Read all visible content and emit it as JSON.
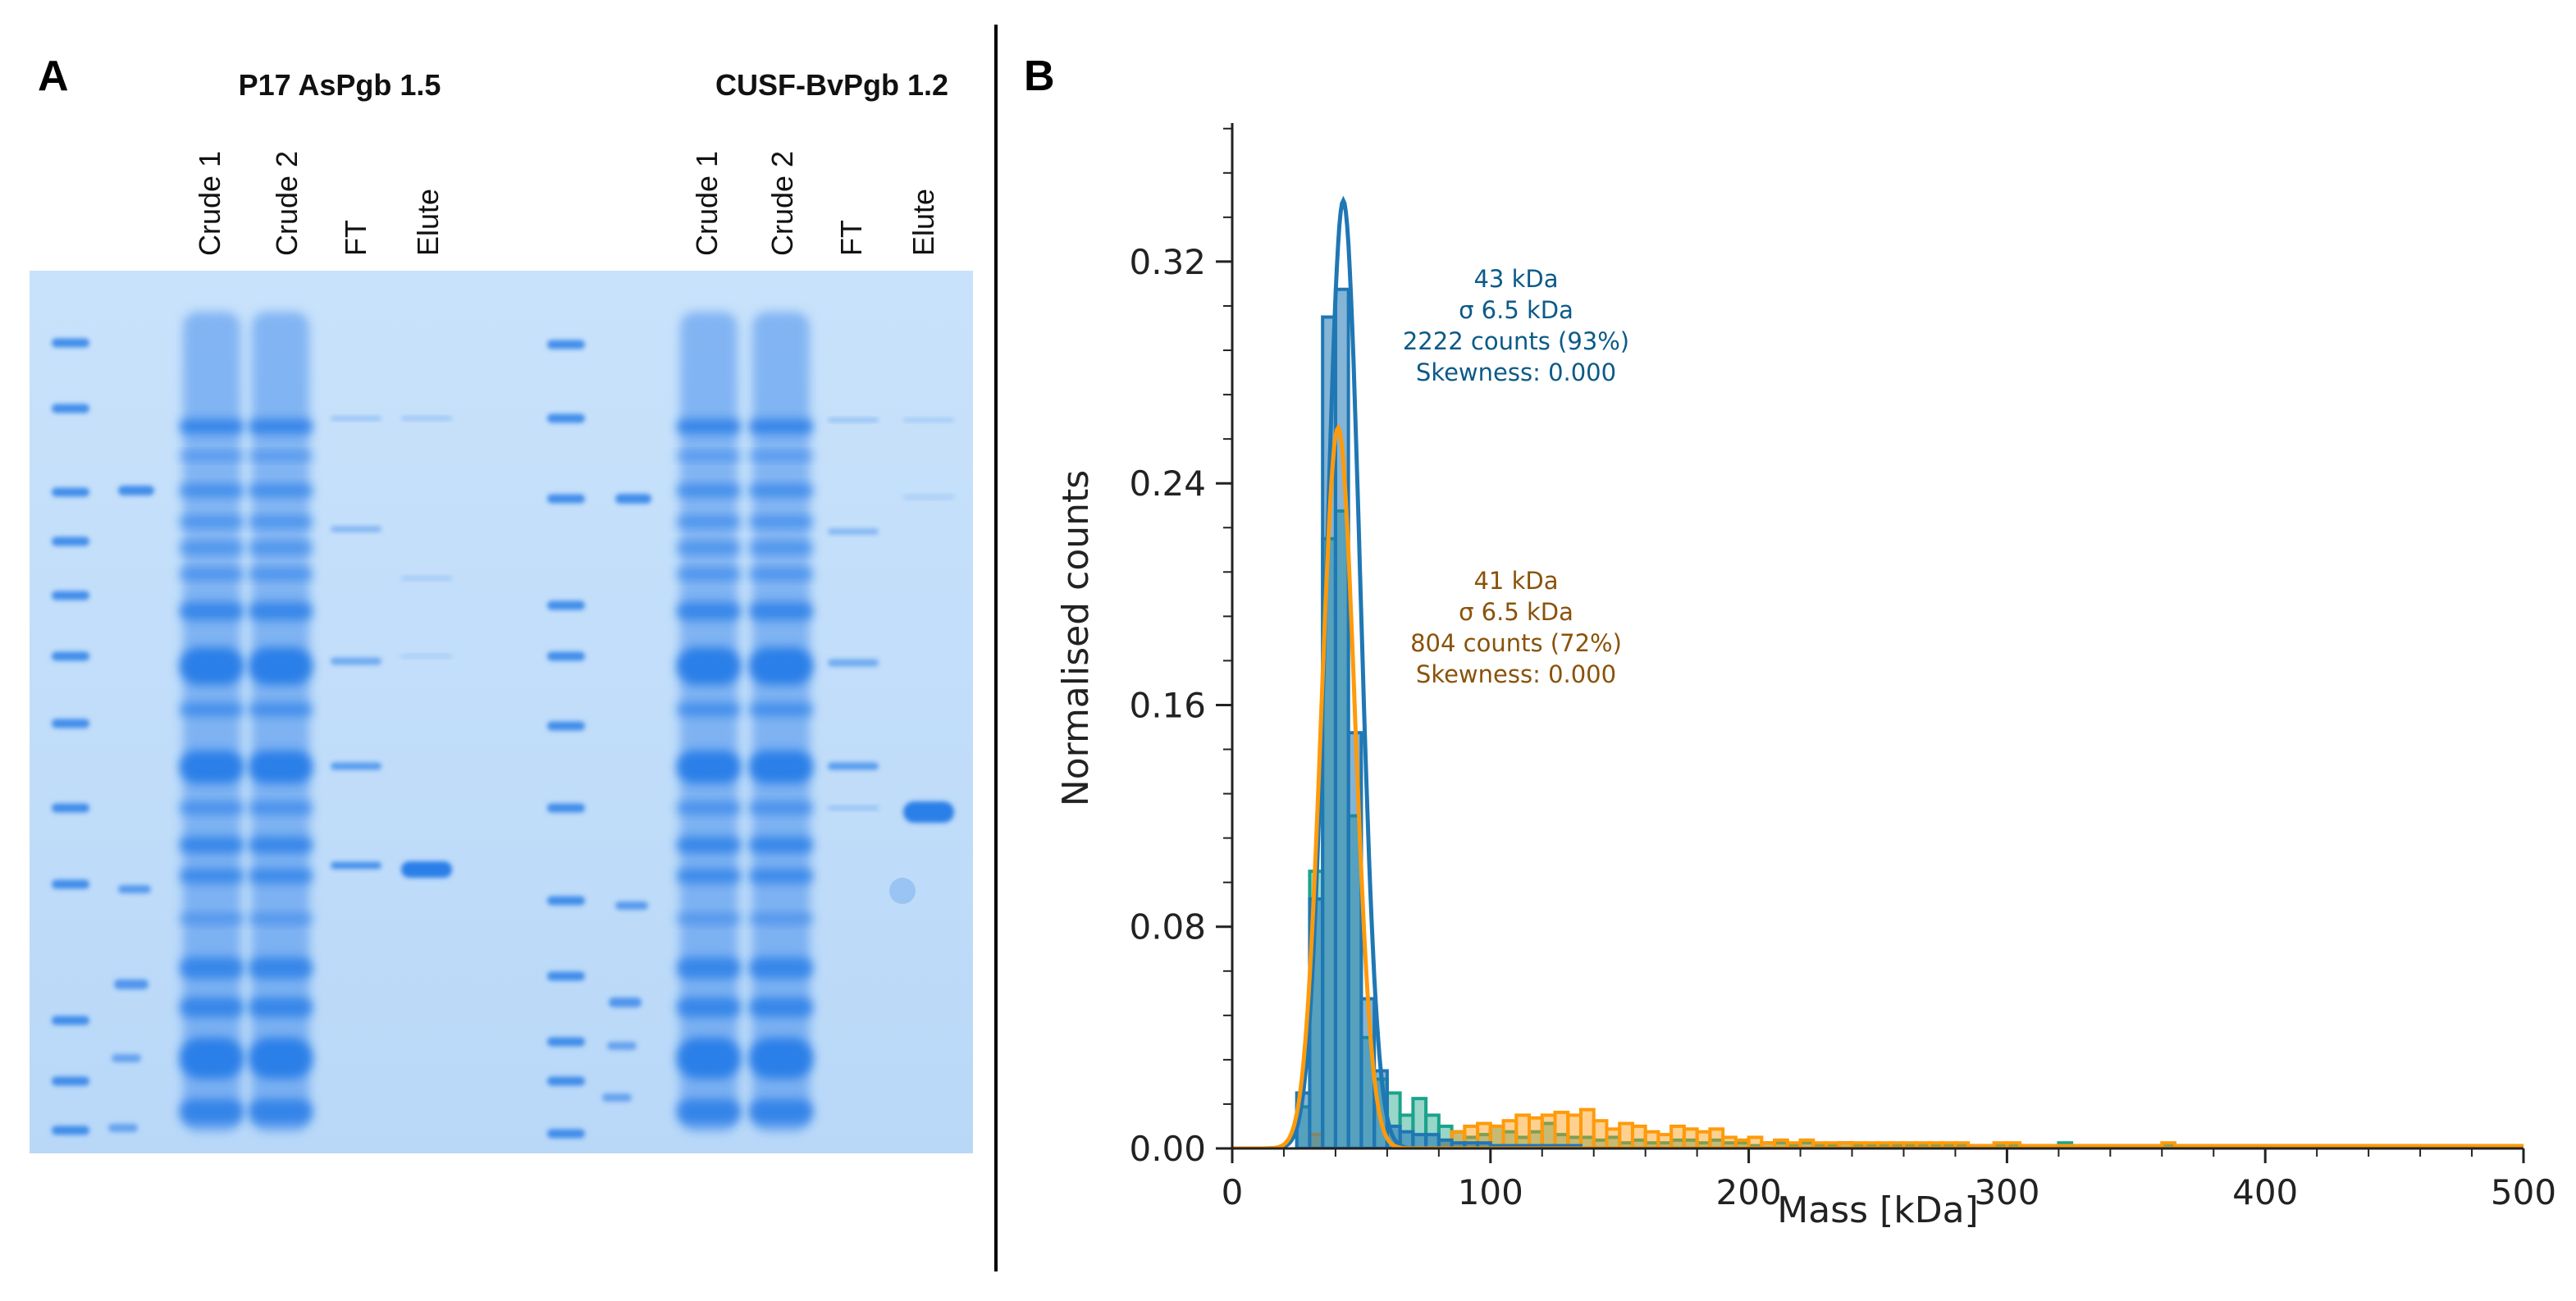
{
  "panelA": {
    "letter": "A",
    "gels": [
      {
        "title": "P17 AsPgb 1.5",
        "lanes": [
          "Crude 1",
          "Crude 2",
          "FT",
          "Elute"
        ]
      },
      {
        "title": "CUSF-BvPgb 1.2",
        "lanes": [
          "Crude 1",
          "Crude 2",
          "FT",
          "Elute"
        ]
      }
    ],
    "colors": {
      "gel_bg": "#c7e0fa",
      "band": "#2b7fe8",
      "band_dark": "#1267e0"
    }
  },
  "panelB": {
    "letter": "B",
    "colors": {
      "blue": "#1f77b4",
      "teal": "#1aa38a",
      "orange": "#ff9a0a",
      "blue_text": "#0b5a88",
      "orange_text": "#8a5208"
    }
  },
  "chart_data": {
    "type": "histogram",
    "xlabel": "Mass [kDa]",
    "ylabel": "Normalised counts",
    "xlim": [
      0,
      500
    ],
    "ylim": [
      0,
      0.37
    ],
    "xticks": [
      0,
      100,
      200,
      300,
      400,
      500
    ],
    "xtick_labels": [
      "0",
      "100",
      "200",
      "300",
      "400",
      "500"
    ],
    "yticks": [
      0.0,
      0.08,
      0.16,
      0.24,
      0.32
    ],
    "ytick_labels": [
      "0.00",
      "0.08",
      "0.16",
      "0.24",
      "0.32"
    ],
    "bin_edges": [
      25,
      30,
      35,
      40,
      45,
      50,
      55,
      60,
      65,
      70,
      75,
      80,
      85,
      90,
      95,
      100,
      105,
      110,
      115,
      120,
      125,
      130,
      135,
      140,
      145,
      150,
      155,
      160,
      165,
      170,
      175,
      180,
      185,
      190,
      195,
      200,
      205,
      210,
      215,
      220,
      225,
      230,
      235,
      240,
      245,
      250,
      255,
      260,
      265,
      270,
      275,
      280,
      285,
      290,
      295,
      300,
      305,
      310,
      315,
      320,
      325,
      330,
      335,
      340,
      345,
      350,
      355,
      360,
      365,
      370,
      375,
      380,
      385,
      390,
      395,
      400,
      405,
      410,
      415,
      420,
      425,
      430,
      435,
      440,
      445,
      450,
      455,
      460,
      465,
      470,
      475,
      480,
      485,
      490,
      495,
      500
    ],
    "series": [
      {
        "name": "blue",
        "color": "#1f77b4",
        "values": [
          0.02,
          0.09,
          0.3,
          0.31,
          0.15,
          0.054,
          0.028,
          0.008,
          0.006,
          0.005,
          0.005,
          0.003,
          0.002,
          0.002,
          0.002,
          0.001,
          0.001,
          0.001,
          0.001,
          0.001,
          0.001,
          0.001,
          0.0,
          0.0,
          0.0,
          0.0,
          0.0,
          0.0,
          0.0,
          0.0,
          0.0,
          0.0,
          0.0,
          0.0,
          0.0,
          0.0,
          0.0,
          0.0,
          0.0,
          0.0,
          0.0,
          0.0,
          0.0,
          0.0,
          0.0,
          0.0,
          0.0,
          0.0,
          0.0,
          0.0,
          0.0,
          0.0,
          0.0,
          0.0,
          0.0,
          0.0,
          0.0,
          0.0,
          0.0,
          0.0,
          0.0,
          0.0,
          0.0,
          0.0,
          0.0,
          0.0,
          0.0,
          0.0,
          0.0,
          0.0,
          0.0,
          0.0,
          0.0,
          0.0,
          0.0,
          0.0,
          0.0,
          0.0,
          0.0,
          0.0,
          0.0,
          0.0,
          0.0,
          0.0,
          0.0,
          0.0,
          0.0,
          0.0,
          0.0,
          0.0,
          0.0,
          0.0,
          0.0,
          0.0,
          0.0
        ]
      },
      {
        "name": "teal",
        "color": "#1aa38a",
        "values": [
          0.015,
          0.1,
          0.22,
          0.23,
          0.12,
          0.04,
          0.025,
          0.02,
          0.012,
          0.018,
          0.012,
          0.008,
          0.006,
          0.004,
          0.005,
          0.008,
          0.006,
          0.004,
          0.006,
          0.009,
          0.005,
          0.004,
          0.004,
          0.003,
          0.004,
          0.002,
          0.003,
          0.002,
          0.002,
          0.003,
          0.003,
          0.002,
          0.003,
          0.002,
          0.002,
          0.001,
          0.002,
          0.002,
          0.001,
          0.002,
          0.001,
          0.001,
          0.002,
          0.001,
          0.001,
          0.001,
          0.001,
          0.001,
          0.001,
          0.001,
          0.001,
          0.001,
          0.001,
          0.001,
          0.001,
          0.001,
          0.001,
          0.001,
          0.001,
          0.002,
          0.001,
          0.001,
          0.001,
          0.001,
          0.001,
          0.001,
          0.001,
          0.001,
          0.001,
          0.001,
          0.001,
          0.001,
          0.001,
          0.001,
          0.001,
          0.001,
          0.001,
          0.001,
          0.001,
          0.001,
          0.001,
          0.001,
          0.001,
          0.001,
          0.001,
          0.001,
          0.001,
          0.001,
          0.001,
          0.001,
          0.001,
          0.001,
          0.001,
          0.001,
          0.001
        ]
      },
      {
        "name": "orange",
        "color": "#ff9a0a",
        "values": [
          0.0,
          0.005,
          0.0,
          0.0,
          0.0,
          0.0,
          0.0,
          0.0,
          0.0,
          0.0,
          0.0,
          0.003,
          0.006,
          0.008,
          0.009,
          0.008,
          0.01,
          0.012,
          0.011,
          0.012,
          0.013,
          0.012,
          0.014,
          0.01,
          0.007,
          0.009,
          0.008,
          0.006,
          0.005,
          0.008,
          0.007,
          0.006,
          0.007,
          0.004,
          0.003,
          0.004,
          0.002,
          0.003,
          0.002,
          0.003,
          0.002,
          0.002,
          0.002,
          0.002,
          0.002,
          0.002,
          0.002,
          0.002,
          0.002,
          0.002,
          0.002,
          0.002,
          0.001,
          0.001,
          0.002,
          0.002,
          0.001,
          0.001,
          0.001,
          0.001,
          0.001,
          0.001,
          0.001,
          0.001,
          0.001,
          0.001,
          0.001,
          0.002,
          0.001,
          0.001,
          0.001,
          0.001,
          0.001,
          0.001,
          0.001,
          0.001,
          0.001,
          0.001,
          0.001,
          0.001,
          0.001,
          0.001,
          0.001,
          0.001,
          0.001,
          0.001,
          0.001,
          0.001,
          0.001,
          0.001,
          0.001,
          0.001,
          0.001,
          0.001,
          0.001
        ]
      }
    ],
    "fits": [
      {
        "name": "blue-fit",
        "color": "#1f77b4",
        "mean": 43,
        "sigma": 6.5,
        "peak": 0.342
      },
      {
        "name": "orange-fit",
        "color": "#ff9a0a",
        "mean": 41,
        "sigma": 6.5,
        "peak": 0.26
      }
    ],
    "annotations": [
      {
        "name": "blue",
        "color": "#0b5a88",
        "lines": [
          "43 kDa",
          "σ 6.5 kDa",
          "2222 counts (93%)",
          "Skewness: 0.000"
        ]
      },
      {
        "name": "orange",
        "color": "#8a5208",
        "lines": [
          "41 kDa",
          "σ 6.5 kDa",
          "804 counts (72%)",
          "Skewness: 0.000"
        ]
      }
    ]
  }
}
